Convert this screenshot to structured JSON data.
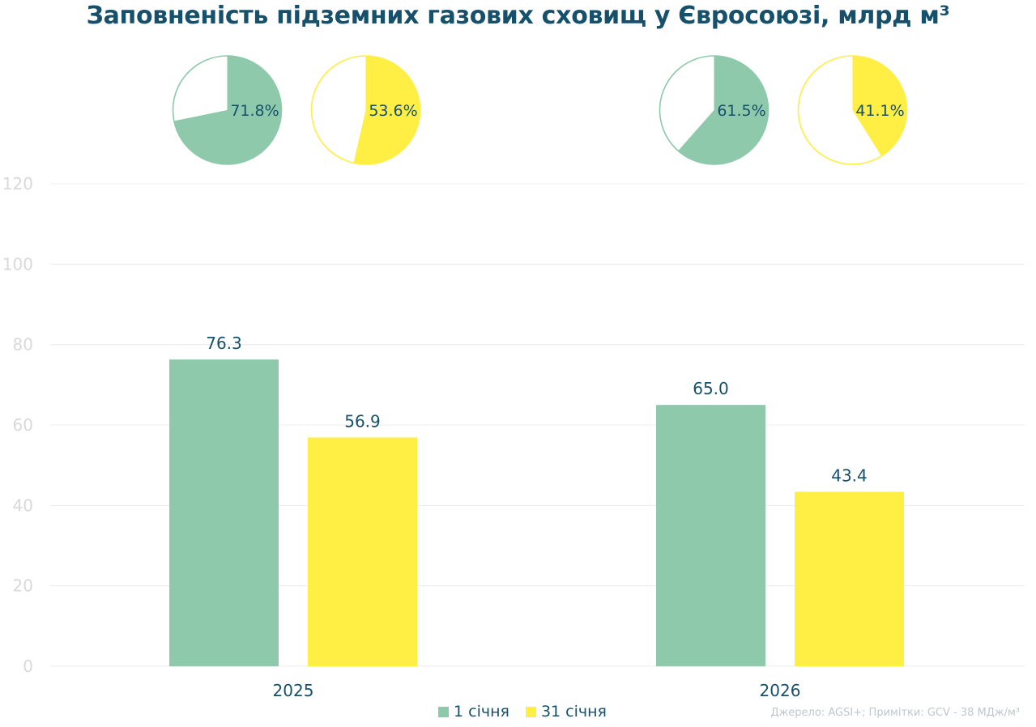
{
  "title": "Заповненість підземних газових сховищ у Євросоюзі, млрд м³",
  "source_note": "Джерело: AGSI+; Примітки: GCV - 38 МДж/м³",
  "colors": {
    "jan1": "#8fc9ab",
    "jan31": "#ffee44",
    "text": "#17506b",
    "grid": "#ececec"
  },
  "chart_data": [
    {
      "type": "bar",
      "title": "Заповненість підземних газових сховищ у Євросоюзі, млрд м³",
      "xlabel": "",
      "ylabel": "",
      "categories": [
        "2025",
        "2026"
      ],
      "series": [
        {
          "name": "1 січня",
          "values": [
            76.3,
            65.0
          ]
        },
        {
          "name": "31 січня",
          "values": [
            56.9,
            43.4
          ]
        }
      ],
      "data_labels": [
        [
          "76.3",
          "65.0"
        ],
        [
          "56.9",
          "43.4"
        ]
      ],
      "ylim": [
        0,
        120
      ],
      "yticks": [
        0,
        20,
        40,
        60,
        80,
        100,
        120
      ],
      "grid": true,
      "legend": "bottom-center"
    },
    {
      "type": "pie",
      "title": "",
      "charts": [
        {
          "category": "2025",
          "series": "1 січня",
          "value": 71.8,
          "label": "71.8%"
        },
        {
          "category": "2025",
          "series": "31 січня",
          "value": 53.6,
          "label": "53.6%"
        },
        {
          "category": "2026",
          "series": "1 січня",
          "value": 61.5,
          "label": "61.5%"
        },
        {
          "category": "2026",
          "series": "31 січня",
          "value": 41.1,
          "label": "41.1%"
        }
      ]
    }
  ]
}
